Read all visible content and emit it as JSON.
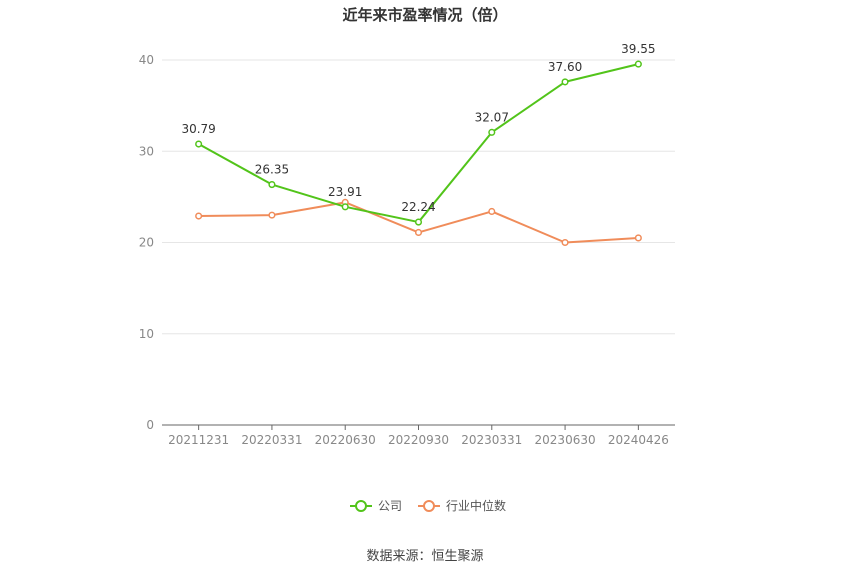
{
  "source_text": "数据来源：恒生聚源",
  "chart_data": {
    "type": "line",
    "title": "近年来市盈率情况（倍）",
    "categories": [
      "20211231",
      "20220331",
      "20220630",
      "20220930",
      "20230331",
      "20230630",
      "20240426"
    ],
    "ylim": [
      0,
      40
    ],
    "yticks": [
      0,
      10,
      20,
      30,
      40
    ],
    "grid": true,
    "legend_position": "bottom",
    "series": [
      {
        "name": "公司",
        "color": "#52c41a",
        "values": [
          30.79,
          26.35,
          23.91,
          22.24,
          32.07,
          37.6,
          39.55
        ],
        "labels": [
          "30.79",
          "26.35",
          "23.91",
          "22.24",
          "32.07",
          "37.60",
          "39.55"
        ]
      },
      {
        "name": "行业中位数",
        "color": "#f08c5a",
        "values": [
          22.9,
          23.0,
          24.4,
          21.1,
          23.4,
          20.0,
          20.5
        ]
      }
    ]
  }
}
